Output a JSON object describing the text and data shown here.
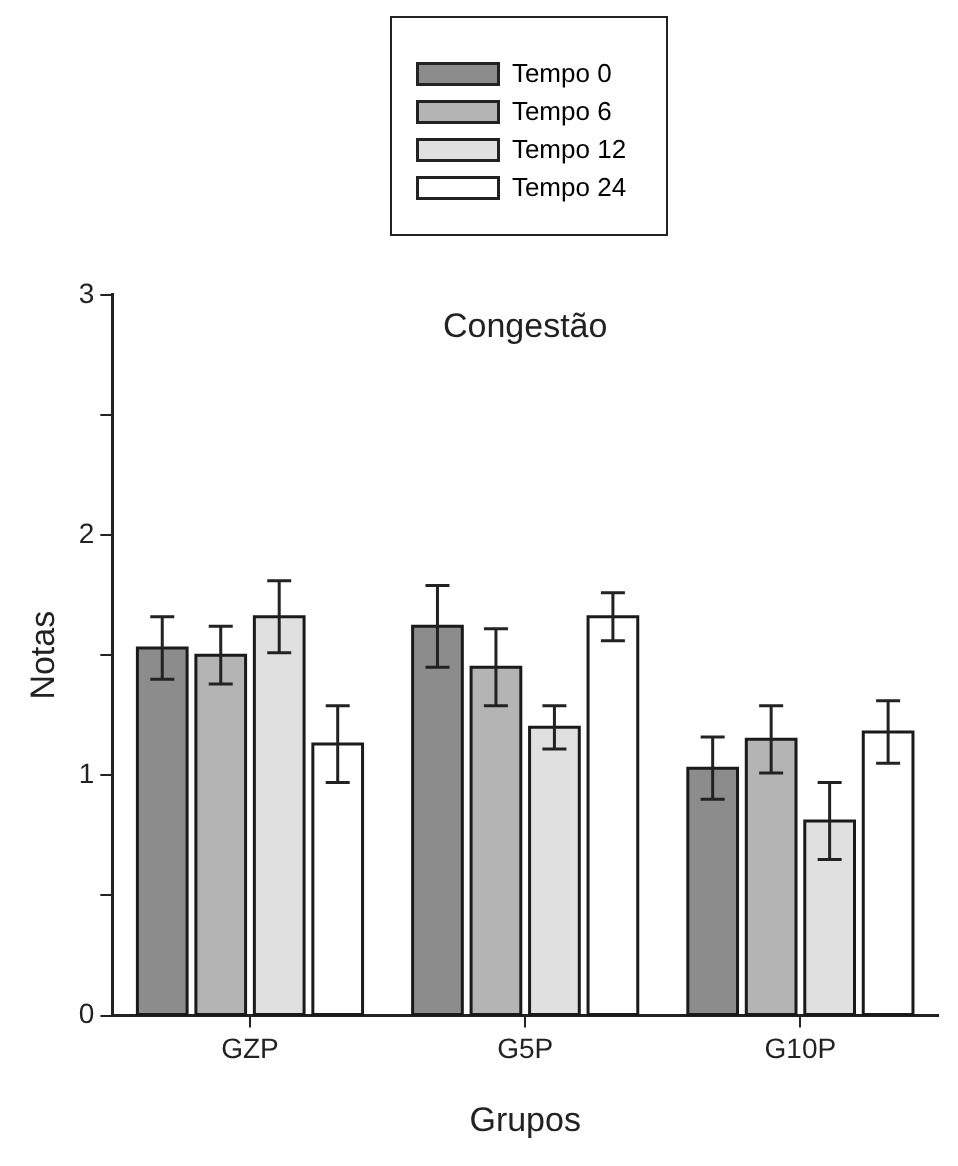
{
  "chart_data": {
    "type": "bar",
    "title": "Congestão",
    "xlabel": "Grupos",
    "ylabel": "Notas",
    "categories": [
      "GZP",
      "G5P",
      "G10P"
    ],
    "series": [
      {
        "name": "Tempo 0",
        "color": "#8c8c8c",
        "values": [
          1.53,
          1.62,
          1.03
        ],
        "errors": [
          0.13,
          0.17,
          0.13
        ]
      },
      {
        "name": "Tempo 6",
        "color": "#b4b4b4",
        "values": [
          1.5,
          1.45,
          1.15
        ],
        "errors": [
          0.12,
          0.16,
          0.14
        ]
      },
      {
        "name": "Tempo 12",
        "color": "#e0e0e0",
        "values": [
          1.66,
          1.2,
          0.81
        ],
        "errors": [
          0.15,
          0.09,
          0.16
        ]
      },
      {
        "name": "Tempo 24",
        "color": "#ffffff",
        "values": [
          1.13,
          1.66,
          1.18
        ],
        "errors": [
          0.16,
          0.1,
          0.13
        ]
      }
    ],
    "ylim": [
      0,
      3
    ],
    "yticks": [
      0,
      {
        "value": 0.5,
        "label": null
      },
      1,
      {
        "value": 1.5,
        "label": null
      },
      2,
      {
        "value": 2.5,
        "label": null
      },
      3
    ],
    "grid": false,
    "legend": "top"
  }
}
